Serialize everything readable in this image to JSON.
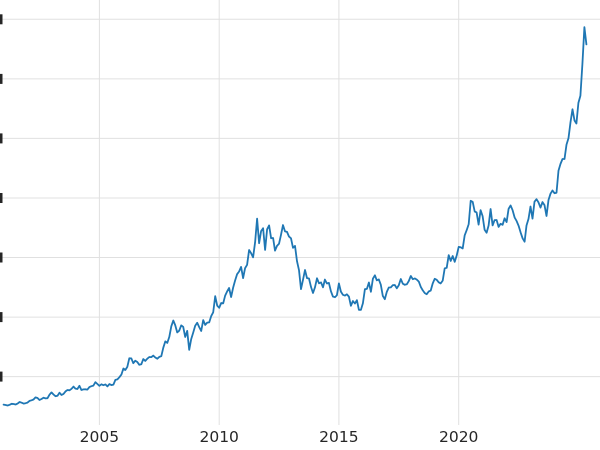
{
  "chart_data": {
    "type": "line",
    "title": "",
    "xlabel": "",
    "ylabel": "",
    "grid": true,
    "legend": "none",
    "notes": "left edge of plot is cropped; y-axis tick labels cut off at left edge",
    "x_range": [
      2000.85,
      2025.9
    ],
    "y_range": [
      94,
      3662
    ],
    "x_ticks": [
      2005,
      2010,
      2015,
      2020
    ],
    "x_tick_labels": [
      "2005",
      "2010",
      "2015",
      "2020"
    ],
    "x_gridlines": [
      2005,
      2010,
      2015,
      2020
    ],
    "y_gridlines": [
      500,
      1000,
      1500,
      2000,
      2500,
      3000,
      3500
    ],
    "colors": {
      "line": "#1f77b4",
      "grid": "#e0e0e0",
      "tick_label": "#262626",
      "background": "#ffffff"
    },
    "series": [
      {
        "x_start": 2001.0,
        "x_interval": 0.0833333,
        "values": [
          265,
          262,
          258,
          264,
          272,
          270,
          266,
          274,
          287,
          281,
          274,
          277,
          282,
          296,
          301,
          308,
          326,
          321,
          304,
          312,
          323,
          317,
          319,
          348,
          368,
          350,
          336,
          340,
          365,
          346,
          355,
          376,
          388,
          385,
          398,
          416,
          400,
          396,
          423,
          388,
          393,
          394,
          391,
          412,
          420,
          425,
          453,
          438,
          423,
          436,
          428,
          435,
          418,
          437,
          429,
          433,
          473,
          477,
          495,
          517,
          568,
          556,
          582,
          654,
          653,
          613,
          634,
          623,
          599,
          604,
          647,
          632,
          651,
          665,
          664,
          677,
          661,
          651,
          666,
          672,
          743,
          796,
          783,
          834,
          923,
          971,
          933,
          871,
          886,
          930,
          918,
          833,
          884,
          725,
          815,
          870,
          928,
          952,
          916,
          883,
          975,
          934,
          954,
          955,
          1008,
          1040,
          1175,
          1096,
          1078,
          1118,
          1116,
          1179,
          1215,
          1244,
          1169,
          1246,
          1307,
          1360,
          1383,
          1421,
          1327,
          1411,
          1439,
          1563,
          1536,
          1502,
          1628,
          1826,
          1620,
          1722,
          1746,
          1564,
          1737,
          1770,
          1662,
          1664,
          1558,
          1598,
          1615,
          1691,
          1772,
          1719,
          1715,
          1676,
          1661,
          1582,
          1598,
          1469,
          1394,
          1235,
          1313,
          1395,
          1327,
          1324,
          1253,
          1202,
          1251,
          1326,
          1284,
          1291,
          1250,
          1315,
          1282,
          1287,
          1217,
          1173,
          1167,
          1184,
          1283,
          1214,
          1187,
          1180,
          1191,
          1172,
          1095,
          1135,
          1114,
          1142,
          1061,
          1060,
          1116,
          1234,
          1237,
          1290,
          1212,
          1322,
          1351,
          1309,
          1316,
          1272,
          1178,
          1150,
          1211,
          1248,
          1249,
          1268,
          1269,
          1242,
          1268,
          1320,
          1280,
          1271,
          1275,
          1303,
          1345,
          1318,
          1325,
          1315,
          1298,
          1253,
          1224,
          1201,
          1192,
          1215,
          1222,
          1282,
          1321,
          1313,
          1292,
          1283,
          1306,
          1409,
          1414,
          1520,
          1472,
          1513,
          1464,
          1517,
          1589,
          1586,
          1577,
          1687,
          1730,
          1781,
          1976,
          1967,
          1886,
          1879,
          1776,
          1898,
          1848,
          1734,
          1708,
          1769,
          1907,
          1770,
          1814,
          1815,
          1757,
          1783,
          1775,
          1829,
          1797,
          1909,
          1937,
          1897,
          1837,
          1807,
          1766,
          1711,
          1661,
          1633,
          1769,
          1824,
          1928,
          1827,
          1969,
          1990,
          1963,
          1919,
          1965,
          1940,
          1849,
          1983,
          2036,
          2063,
          2040,
          2044,
          2230,
          2286,
          2327,
          2327,
          2448,
          2503,
          2635,
          2744,
          2650,
          2625,
          2798,
          2858,
          3124,
          3434,
          3289
        ]
      }
    ]
  }
}
